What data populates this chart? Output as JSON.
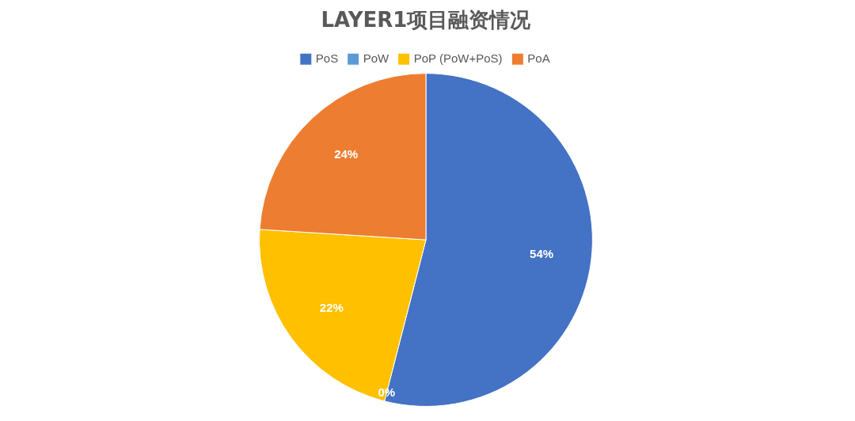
{
  "chart_data": {
    "type": "pie",
    "title": "LAYER1项目融资情况",
    "categories": [
      "PoS",
      "PoW",
      "PoP (PoW+PoS)",
      "PoA"
    ],
    "values": [
      54,
      0,
      22,
      24
    ],
    "colors": [
      "#4472c4",
      "#5b9bd5",
      "#ffc000",
      "#ed7d31"
    ],
    "value_labels": [
      "54%",
      "0%",
      "22%",
      "24%"
    ],
    "legend": "top"
  }
}
